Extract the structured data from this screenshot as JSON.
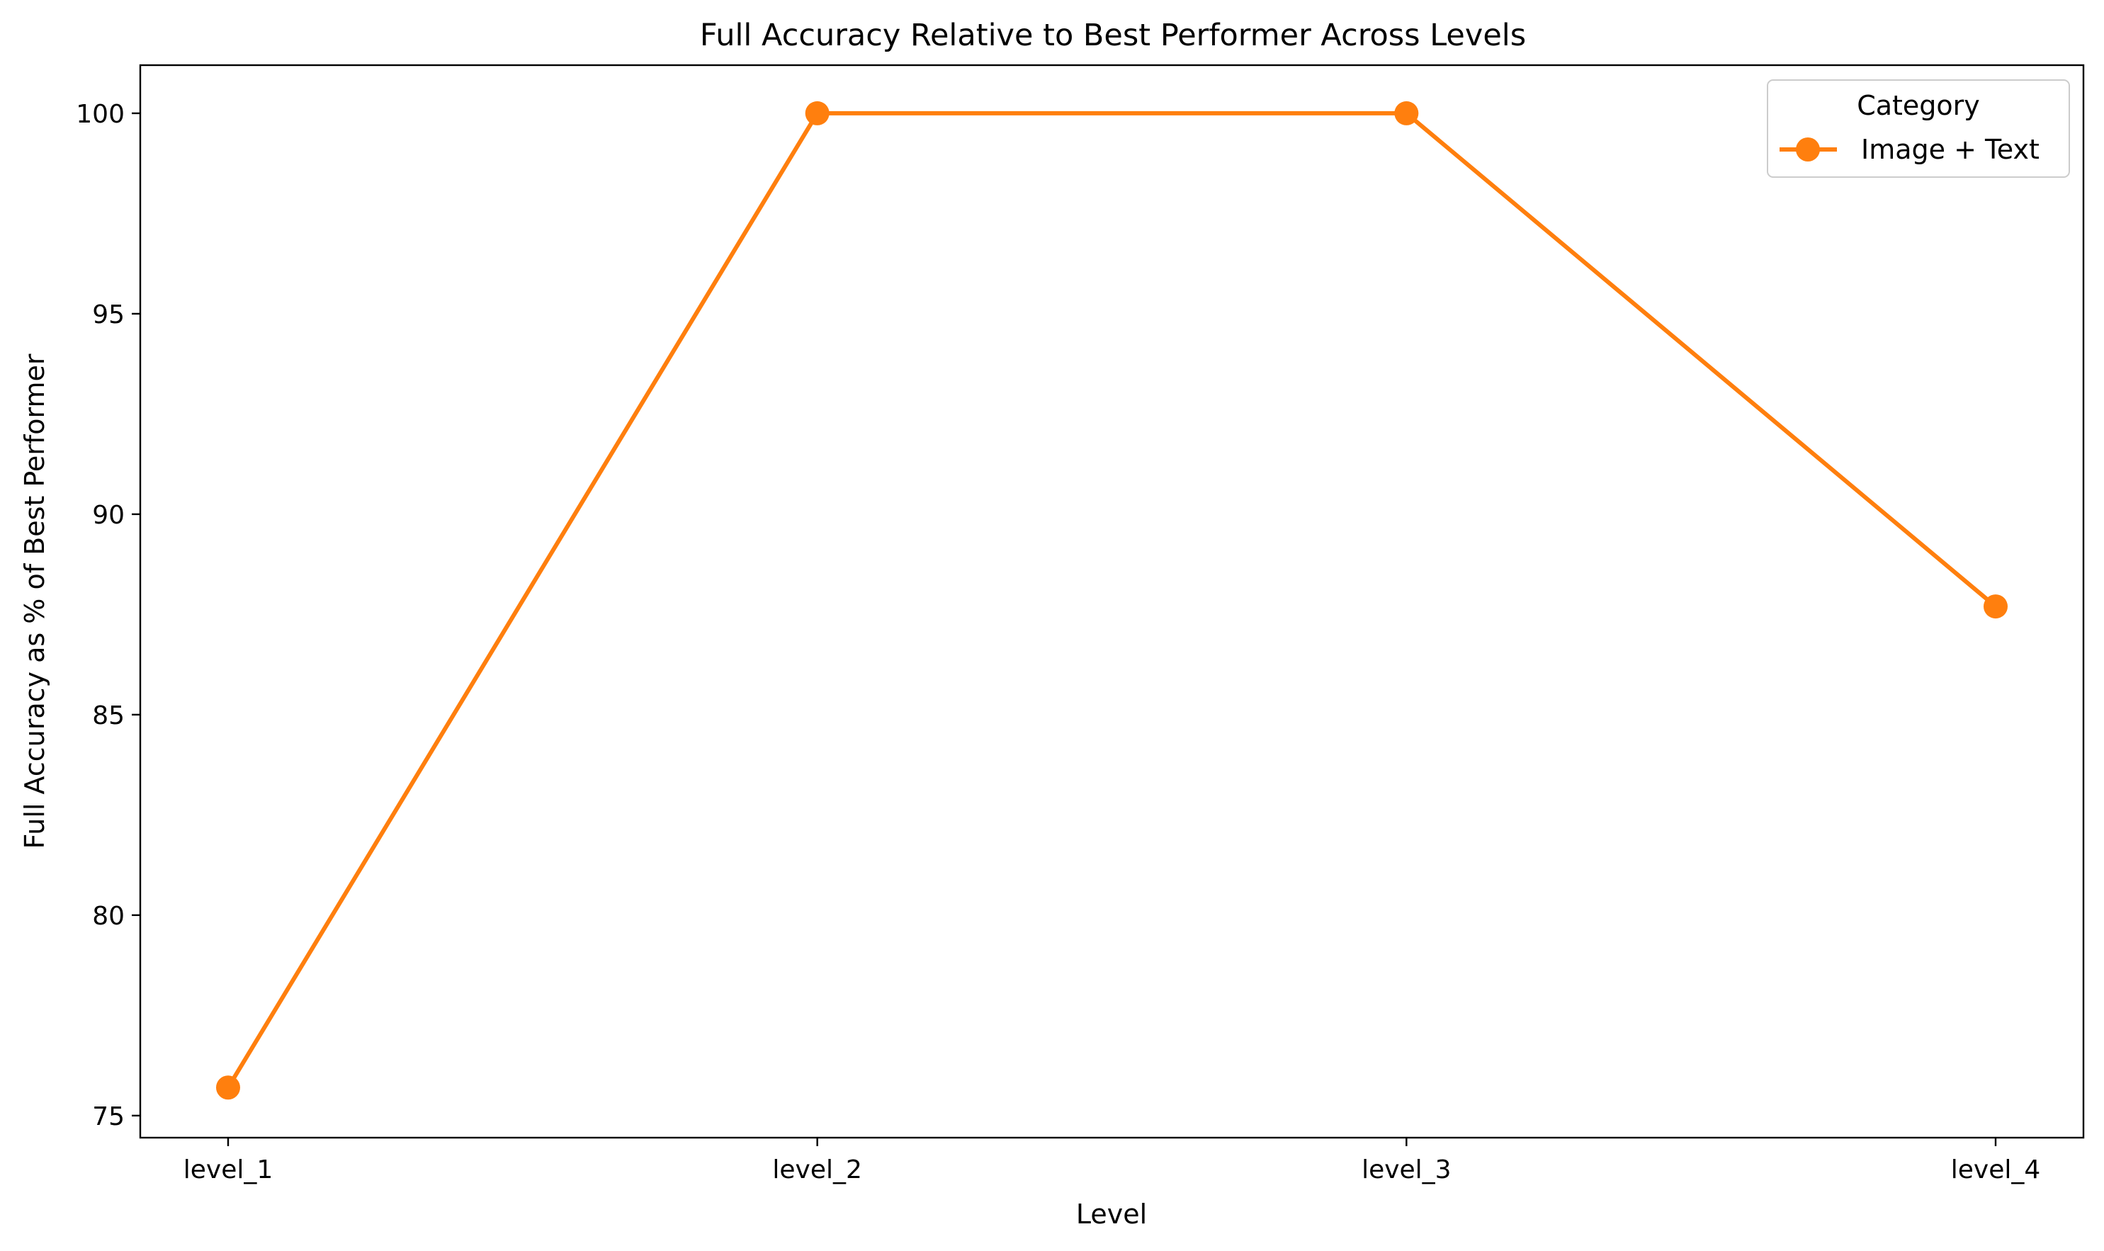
{
  "chart_data": {
    "type": "line",
    "title": "Full Accuracy Relative to Best Performer Across Levels",
    "xlabel": "Level",
    "ylabel": "Full Accuracy as % of Best Performer",
    "categories": [
      "level_1",
      "level_2",
      "level_3",
      "level_4"
    ],
    "yticks": [
      "75",
      "80",
      "85",
      "90",
      "95",
      "100"
    ],
    "ylim": [
      74.45,
      101.2
    ],
    "grid": false,
    "legend": {
      "title": "Category",
      "placement": "top-right"
    },
    "series": [
      {
        "name": "Image + Text",
        "color": "#ff7f0e",
        "marker": "circle",
        "values": [
          75.7,
          100.0,
          100.0,
          87.7
        ]
      }
    ]
  }
}
